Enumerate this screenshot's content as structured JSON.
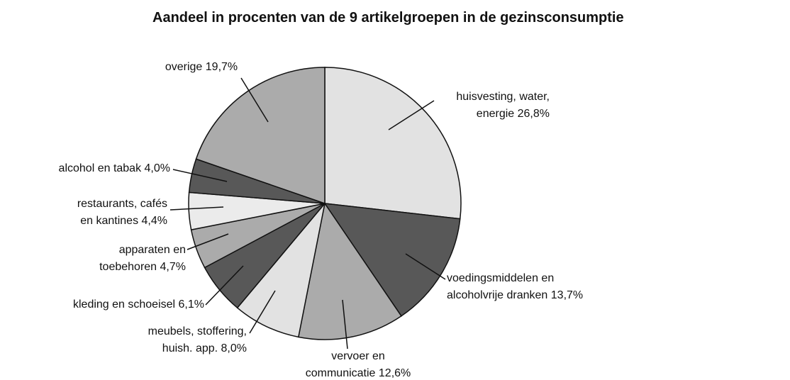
{
  "chart_data": {
    "type": "pie",
    "title": "Aandeel in procenten van de 9 artikelgroepen in de gezinsconsumptie",
    "categories": [
      "huisvesting, water,\nenergie",
      "voedingsmiddelen en\nalcoholvrije dranken",
      "vervoer en\ncommunicatie",
      "meubels, stoffering,\nhuish. app.",
      "kleding en schoeisel",
      "apparaten en\ntoebehoren",
      "restaurants, cafés\nen kantines",
      "alcohol en tabak",
      "overige"
    ],
    "values": [
      26.8,
      13.7,
      12.6,
      8.0,
      6.1,
      4.7,
      4.4,
      4.0,
      19.7
    ],
    "value_labels": [
      "26,8%",
      "13,7%",
      "12,6%",
      "8,0%",
      "6,1%",
      "4,7%",
      "4,4%",
      "4,0%",
      "19,7%"
    ],
    "colors": [
      "#e2e2e2",
      "#585858",
      "#ababab",
      "#e2e2e2",
      "#585858",
      "#ababab",
      "#ebebeb",
      "#585858",
      "#ababab"
    ]
  }
}
